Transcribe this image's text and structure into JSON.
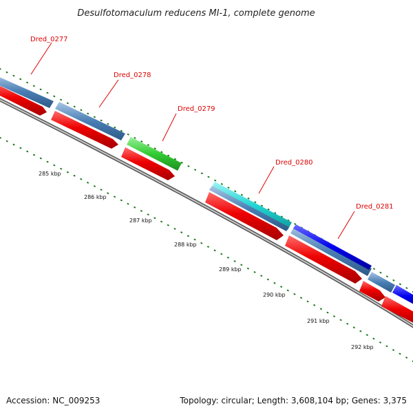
{
  "title": "Desulfotomaculum reducens MI-1, complete genome",
  "footer": {
    "accession": "Accession: NC_009253",
    "summary": "Topology: circular; Length: 3,608,104 bp; Genes: 3,375"
  },
  "gene_labels": [
    "Dred_0277",
    "Dred_0278",
    "Dred_0279",
    "Dred_0280",
    "Dred_0281"
  ],
  "scale_labels": [
    "285 kbp",
    "286 kbp",
    "287 kbp",
    "288 kbp",
    "289 kbp",
    "290 kbp",
    "291 kbp",
    "292 kbp"
  ],
  "colors": {
    "background": "#ffffff",
    "backbone": "#888888",
    "cds_red": "#ee0000",
    "cog_steelblue": "#4a7fb5",
    "cog_green": "#33cc33",
    "cog_cyan": "#22d4d4",
    "cog_blue": "#0000ee",
    "tick_green": "#1a7a1a",
    "label_red": "#dd0000"
  }
}
